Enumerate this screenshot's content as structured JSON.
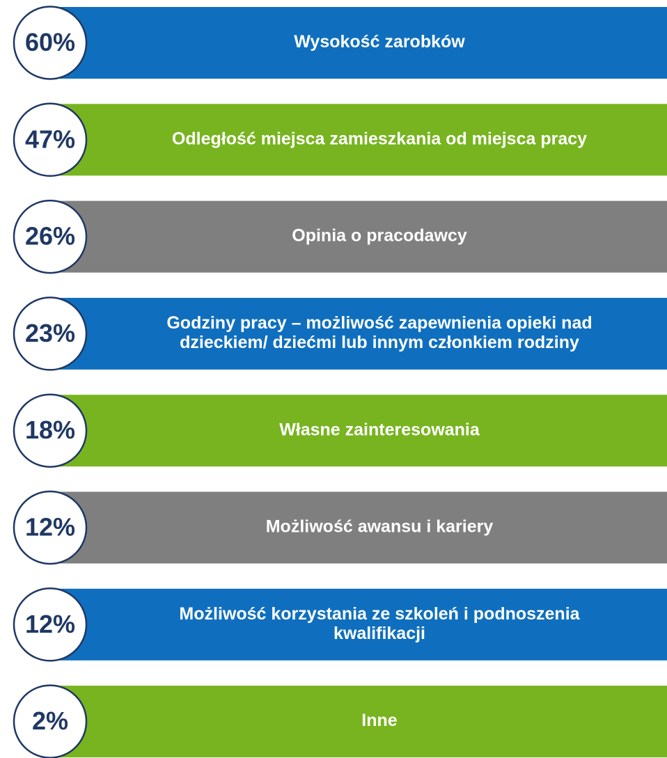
{
  "items": [
    {
      "percent": "60%",
      "lines": [
        "Wysokość zarobków"
      ],
      "color": "#0f6fbe"
    },
    {
      "percent": "47%",
      "lines": [
        "Odległość miejsca zamieszkania od miejsca pracy"
      ],
      "color": "#77b41f"
    },
    {
      "percent": "26%",
      "lines": [
        "Opinia o pracodawcy"
      ],
      "color": "#7f7f7f"
    },
    {
      "percent": "23%",
      "lines": [
        "Godziny pracy – możliwość zapewnienia opieki nad",
        "dzieckiem/ dziećmi lub innym członkiem rodziny"
      ],
      "color": "#0f6fbe"
    },
    {
      "percent": "18%",
      "lines": [
        "Własne zainteresowania"
      ],
      "color": "#77b41f"
    },
    {
      "percent": "12%",
      "lines": [
        "Możliwość awansu i kariery"
      ],
      "color": "#7f7f7f"
    },
    {
      "percent": "12%",
      "lines": [
        "Możliwość korzystania ze szkoleń i podnoszenia",
        "kwalifikacji"
      ],
      "color": "#0f6fbe"
    },
    {
      "percent": "2%",
      "lines": [
        "Inne"
      ],
      "color": "#77b41f"
    }
  ]
}
